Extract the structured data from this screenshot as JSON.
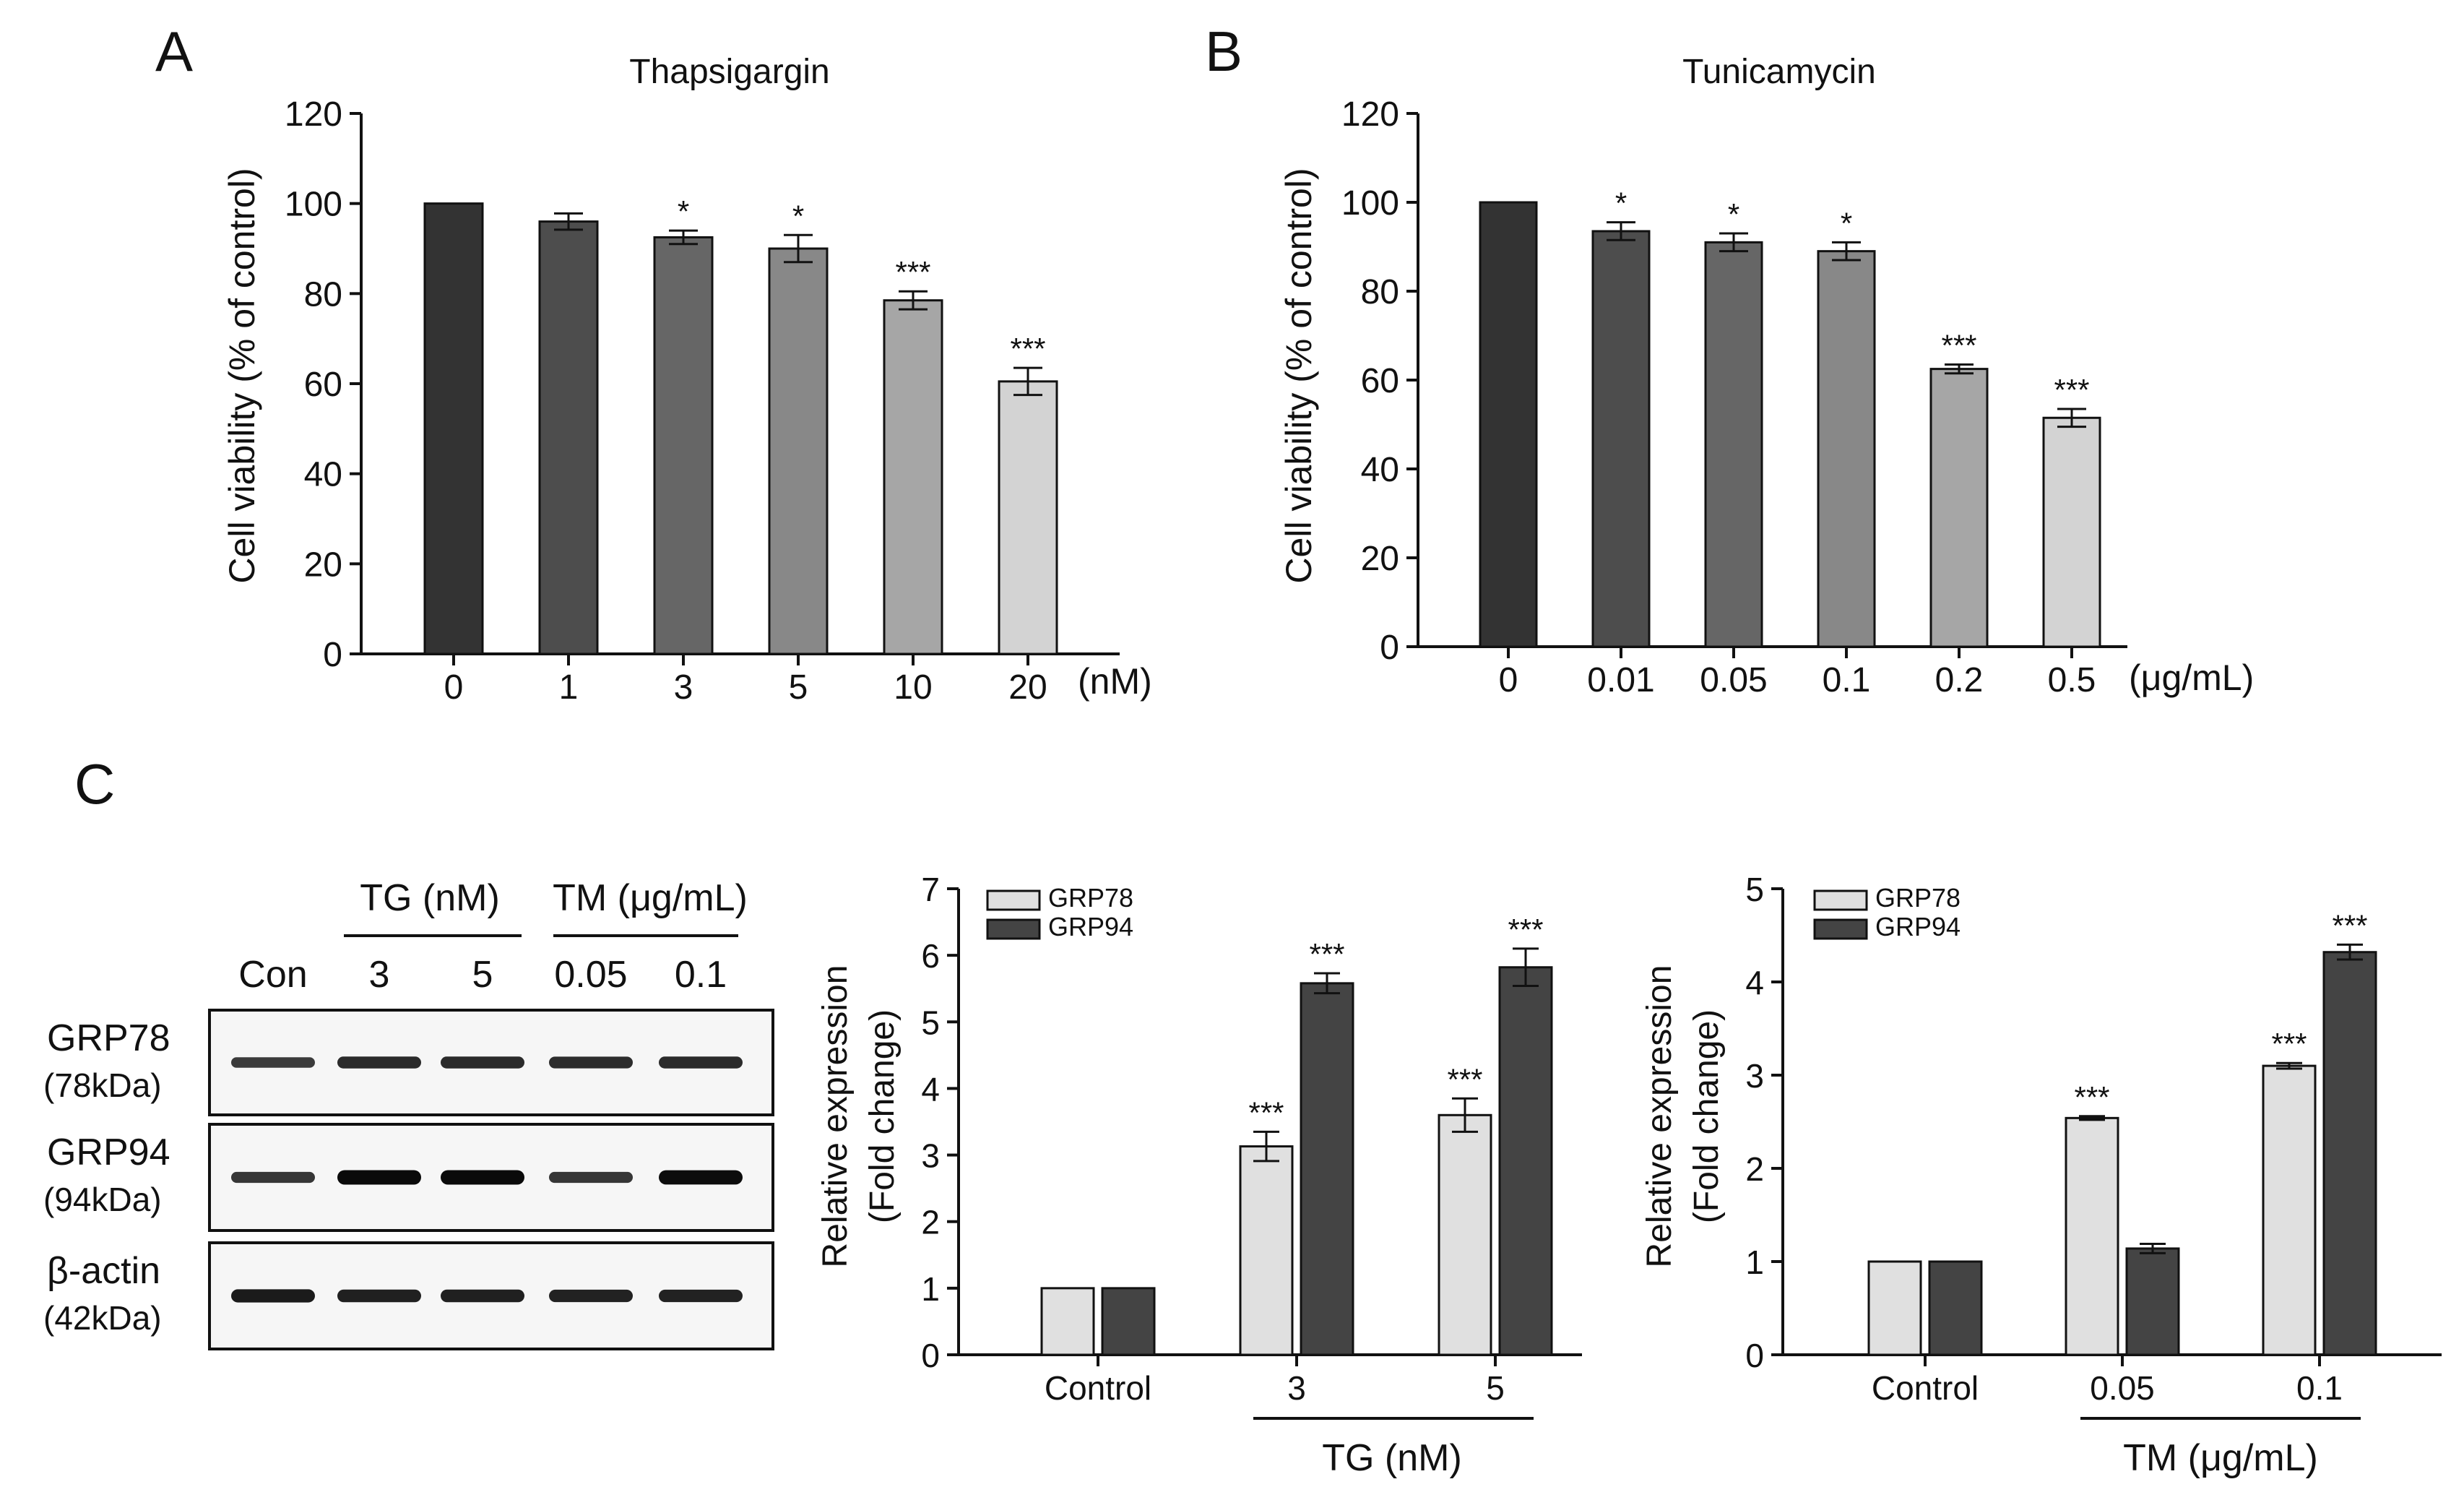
{
  "panels": {
    "a": {
      "letter": "A"
    },
    "b": {
      "letter": "B"
    },
    "c": {
      "letter": "C"
    }
  },
  "western_blot": {
    "group_tg": "TG (nM)",
    "group_tm": "TM (μg/mL)",
    "lanes": [
      "Con",
      "3",
      "5",
      "0.05",
      "0.1"
    ],
    "rows": [
      {
        "name": "GRP78",
        "kda": "(78kDa)",
        "intensity": [
          0.55,
          0.7,
          0.7,
          0.68,
          0.7
        ]
      },
      {
        "name": "GRP94",
        "kda": "(94kDa)",
        "intensity": [
          0.6,
          1.0,
          1.0,
          0.6,
          0.98
        ]
      },
      {
        "name": "β-actin",
        "kda": "(42kDa)",
        "intensity": [
          0.85,
          0.8,
          0.8,
          0.78,
          0.78
        ]
      }
    ]
  },
  "chart_data": [
    {
      "type": "bar",
      "title": "Thapsigargin",
      "categories": [
        "0",
        "1",
        "3",
        "5",
        "10",
        "20"
      ],
      "unit": "(nM)",
      "values": [
        100,
        96,
        92.5,
        90,
        78.5,
        60.5
      ],
      "errors": [
        0,
        1.8,
        1.5,
        3,
        2,
        3
      ],
      "significance": [
        "",
        "",
        "*",
        "*",
        "***",
        "***"
      ],
      "colors": [
        "#333333",
        "#4d4d4d",
        "#666666",
        "#888888",
        "#a6a6a6",
        "#d3d3d3"
      ],
      "ylabel": "Cell viability (% of control)",
      "ylim": [
        0,
        120
      ],
      "yticks": [
        0,
        20,
        40,
        60,
        80,
        100,
        120
      ]
    },
    {
      "type": "bar",
      "title": "Tunicamycin",
      "categories": [
        "0",
        "0.01",
        "0.05",
        "0.1",
        "0.2",
        "0.5"
      ],
      "unit": "(μg/mL)",
      "values": [
        100,
        93.5,
        91,
        89,
        62.5,
        51.5
      ],
      "errors": [
        0,
        2,
        2,
        2,
        1,
        2
      ],
      "significance": [
        "",
        "*",
        "*",
        "*",
        "***",
        "***"
      ],
      "colors": [
        "#333333",
        "#4d4d4d",
        "#666666",
        "#888888",
        "#a6a6a6",
        "#d3d3d3"
      ],
      "ylabel": "Cell viability (% of control)",
      "ylim": [
        0,
        120
      ],
      "yticks": [
        0,
        20,
        40,
        60,
        80,
        100,
        120
      ]
    },
    {
      "type": "bar",
      "categories": [
        "Control",
        "3",
        "5"
      ],
      "group_label": "TG (nM)",
      "series": [
        {
          "name": "GRP78",
          "values": [
            1,
            3.13,
            3.6
          ],
          "errors": [
            0,
            0.22,
            0.25
          ],
          "significance": [
            "",
            "***",
            "***"
          ],
          "color": "#e0e0e0"
        },
        {
          "name": "GRP94",
          "values": [
            1,
            5.58,
            5.82
          ],
          "errors": [
            0,
            0.15,
            0.28
          ],
          "significance": [
            "",
            "***",
            "***"
          ],
          "color": "#444444"
        }
      ],
      "ylabel": "Relative expression",
      "ylabel2": "(Fold change)",
      "ylim": [
        0,
        7
      ],
      "yticks": [
        0,
        1,
        2,
        3,
        4,
        5,
        6,
        7
      ],
      "legend": "top-left"
    },
    {
      "type": "bar",
      "categories": [
        "Control",
        "0.05",
        "0.1"
      ],
      "group_label": "TM (μg/mL)",
      "series": [
        {
          "name": "GRP78",
          "values": [
            1,
            2.54,
            3.1
          ],
          "errors": [
            0,
            0.02,
            0.03
          ],
          "significance": [
            "",
            "***",
            "***"
          ],
          "color": "#e0e0e0"
        },
        {
          "name": "GRP94",
          "values": [
            1,
            1.14,
            4.32
          ],
          "errors": [
            0,
            0.05,
            0.08
          ],
          "significance": [
            "",
            "",
            "***"
          ],
          "color": "#444444"
        }
      ],
      "ylabel": "Relative expression",
      "ylabel2": "(Fold change)",
      "ylim": [
        0,
        5
      ],
      "yticks": [
        0,
        1,
        2,
        3,
        4,
        5
      ],
      "legend": "top-left"
    }
  ]
}
